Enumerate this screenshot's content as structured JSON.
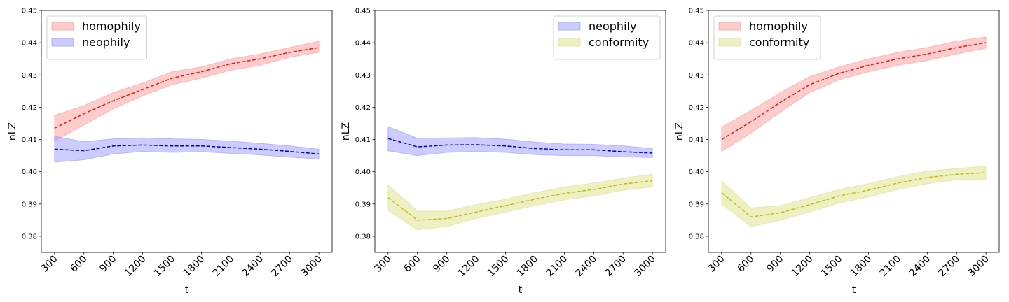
{
  "chart_data": [
    {
      "type": "line",
      "x": [
        300,
        600,
        900,
        1200,
        1500,
        1800,
        2100,
        2400,
        2700,
        3000
      ],
      "xlabel": "t",
      "ylabel": "nLZ",
      "ylim": [
        0.375,
        0.45
      ],
      "yticks": [
        0.38,
        0.39,
        0.4,
        0.41,
        0.42,
        0.43,
        0.44,
        0.45
      ],
      "legend_position": "top-left",
      "series": [
        {
          "name": "homophily",
          "line_color": "#e41a1c",
          "band_color": "#ff9999",
          "values": [
            0.4135,
            0.418,
            0.422,
            0.4255,
            0.429,
            0.431,
            0.4335,
            0.435,
            0.437,
            0.4385
          ],
          "lower": [
            0.4095,
            0.4145,
            0.4195,
            0.4235,
            0.427,
            0.429,
            0.4315,
            0.433,
            0.4355,
            0.437
          ],
          "upper": [
            0.4175,
            0.4205,
            0.4245,
            0.4275,
            0.431,
            0.4325,
            0.435,
            0.4365,
            0.4385,
            0.4405
          ]
        },
        {
          "name": "neophily",
          "line_color": "#0000cc",
          "band_color": "#9999ff",
          "values": [
            0.407,
            0.4065,
            0.408,
            0.4083,
            0.408,
            0.408,
            0.4075,
            0.407,
            0.4063,
            0.4055
          ],
          "lower": [
            0.403,
            0.4037,
            0.4055,
            0.4063,
            0.406,
            0.4062,
            0.4057,
            0.4052,
            0.4045,
            0.404
          ],
          "upper": [
            0.411,
            0.4093,
            0.4102,
            0.4105,
            0.4102,
            0.41,
            0.4095,
            0.4088,
            0.408,
            0.407
          ]
        }
      ]
    },
    {
      "type": "line",
      "x": [
        300,
        600,
        900,
        1200,
        1500,
        1800,
        2100,
        2400,
        2700,
        3000
      ],
      "xlabel": "t",
      "ylabel": "nLZ",
      "ylim": [
        0.375,
        0.45
      ],
      "yticks": [
        0.38,
        0.39,
        0.4,
        0.41,
        0.42,
        0.43,
        0.44,
        0.45
      ],
      "legend_position": "top-right",
      "series": [
        {
          "name": "neophily",
          "line_color": "#0000cc",
          "band_color": "#9999ff",
          "values": [
            0.4103,
            0.4077,
            0.4083,
            0.4084,
            0.408,
            0.4072,
            0.4068,
            0.4068,
            0.4062,
            0.4058
          ],
          "lower": [
            0.4065,
            0.405,
            0.406,
            0.4063,
            0.406,
            0.4053,
            0.405,
            0.405,
            0.4046,
            0.4044
          ],
          "upper": [
            0.414,
            0.4104,
            0.4105,
            0.4106,
            0.4101,
            0.4092,
            0.4086,
            0.4085,
            0.408,
            0.4072
          ]
        },
        {
          "name": "conformity",
          "line_color": "#bfbf00",
          "band_color": "#e0e08a",
          "values": [
            0.392,
            0.385,
            0.3855,
            0.3875,
            0.3895,
            0.3915,
            0.3933,
            0.3945,
            0.3962,
            0.3972
          ],
          "lower": [
            0.388,
            0.382,
            0.383,
            0.3855,
            0.3875,
            0.3895,
            0.3913,
            0.3925,
            0.3943,
            0.3953
          ],
          "upper": [
            0.396,
            0.3878,
            0.3878,
            0.3898,
            0.3915,
            0.3935,
            0.3953,
            0.3965,
            0.398,
            0.3993
          ]
        }
      ]
    },
    {
      "type": "line",
      "x": [
        300,
        600,
        900,
        1200,
        1500,
        1800,
        2100,
        2400,
        2700,
        3000
      ],
      "xlabel": "t",
      "ylabel": "nLZ",
      "ylim": [
        0.375,
        0.45
      ],
      "yticks": [
        0.38,
        0.39,
        0.4,
        0.41,
        0.42,
        0.43,
        0.44,
        0.45
      ],
      "legend_position": "top-left",
      "series": [
        {
          "name": "homophily",
          "line_color": "#e41a1c",
          "band_color": "#ff9999",
          "values": [
            0.41,
            0.4155,
            0.4215,
            0.427,
            0.4305,
            0.433,
            0.435,
            0.4365,
            0.4385,
            0.44
          ],
          "lower": [
            0.4063,
            0.412,
            0.4185,
            0.4245,
            0.4285,
            0.431,
            0.433,
            0.4345,
            0.4365,
            0.4383
          ],
          "upper": [
            0.4138,
            0.419,
            0.4245,
            0.4295,
            0.4325,
            0.435,
            0.437,
            0.4385,
            0.4405,
            0.4418
          ]
        },
        {
          "name": "conformity",
          "line_color": "#bfbf00",
          "band_color": "#e0e08a",
          "values": [
            0.3935,
            0.386,
            0.3873,
            0.3898,
            0.3925,
            0.3943,
            0.3965,
            0.3982,
            0.3992,
            0.3997
          ],
          "lower": [
            0.39,
            0.383,
            0.385,
            0.3875,
            0.3903,
            0.3922,
            0.3945,
            0.3963,
            0.3975,
            0.3977
          ],
          "upper": [
            0.3972,
            0.3888,
            0.3895,
            0.392,
            0.3945,
            0.3963,
            0.3985,
            0.4002,
            0.401,
            0.4017
          ]
        }
      ]
    }
  ]
}
